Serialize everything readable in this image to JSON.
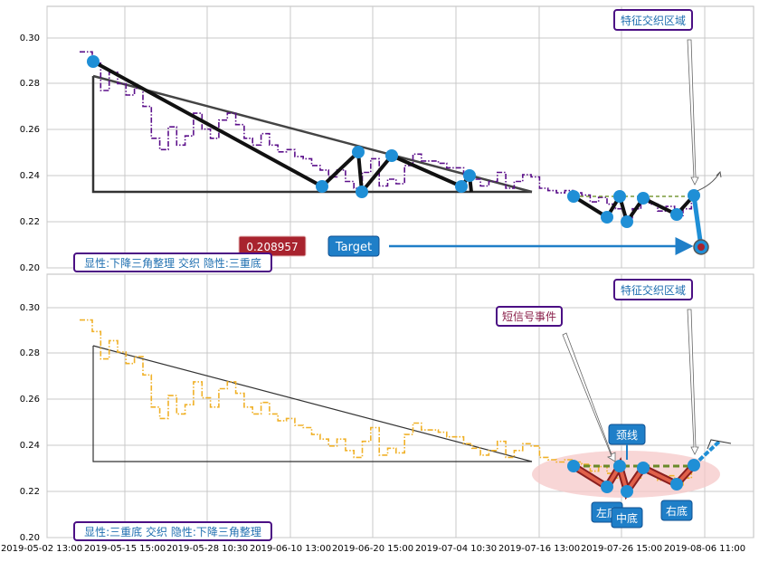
{
  "chart_data": [
    {
      "type": "line",
      "panel": "top",
      "ylim": [
        0.2,
        0.315
      ],
      "yticks": [
        "0.20",
        "0.22",
        "0.24",
        "0.26",
        "0.28",
        "0.30"
      ],
      "grid": true,
      "series": [
        {
          "color": "#5b0f8a",
          "style": "dash-dot",
          "x": [
            0,
            1,
            2,
            3,
            4,
            5,
            6,
            7,
            8,
            9,
            10,
            11,
            12,
            13,
            14,
            15,
            16,
            17,
            18,
            19,
            20,
            21,
            22,
            23,
            24,
            25,
            26,
            27,
            28,
            29,
            30,
            31,
            32,
            33,
            34,
            35,
            36,
            37,
            38,
            39,
            40,
            41,
            42,
            43,
            44,
            45,
            46,
            47,
            48,
            49,
            50,
            51,
            52,
            53,
            54,
            55,
            56,
            57,
            58,
            59,
            60,
            61,
            62,
            63,
            64,
            65,
            66,
            67,
            68,
            69,
            70,
            71,
            72,
            73
          ],
          "y": [
            0.295,
            0.295,
            0.29,
            0.278,
            0.286,
            0.281,
            0.276,
            0.279,
            0.271,
            0.257,
            0.252,
            0.262,
            0.254,
            0.258,
            0.268,
            0.261,
            0.257,
            0.265,
            0.268,
            0.263,
            0.257,
            0.254,
            0.259,
            0.254,
            0.251,
            0.252,
            0.249,
            0.248,
            0.245,
            0.243,
            0.24,
            0.243,
            0.238,
            0.235,
            0.242,
            0.248,
            0.236,
            0.239,
            0.237,
            0.245,
            0.25,
            0.247,
            0.247,
            0.246,
            0.244,
            0.244,
            0.241,
            0.239,
            0.236,
            0.238,
            0.242,
            0.235,
            0.238,
            0.241,
            0.24,
            0.235,
            0.234,
            0.233,
            0.234,
            0.233,
            0.232,
            0.229,
            0.231,
            0.228,
            0.226,
            0.222,
            0.226,
            0.231,
            0.228,
            0.225,
            0.227,
            0.223,
            0.226,
            0.231
          ]
        }
      ],
      "annotations": {
        "region_label": "特征交织区域",
        "value_label": "0.208957",
        "target_label": "Target",
        "pattern_label": "显性:下降三角整理 交织 隐性:三重底"
      }
    },
    {
      "type": "line",
      "panel": "bottom",
      "ylim": [
        0.2,
        0.315
      ],
      "yticks": [
        "0.20",
        "0.22",
        "0.24",
        "0.26",
        "0.28",
        "0.30"
      ],
      "grid": true,
      "x_ticks": [
        "2019-05-02 13:00",
        "2019-05-15 15:00",
        "2019-05-28 10:30",
        "2019-06-10 13:00",
        "2019-06-20 15:00",
        "2019-07-04 10:30",
        "2019-07-16 13:00",
        "2019-07-26 15:00",
        "2019-08-06 11:00"
      ],
      "series": [
        {
          "color": "#f0b128",
          "style": "dash-dot",
          "x": [
            0,
            1,
            2,
            3,
            4,
            5,
            6,
            7,
            8,
            9,
            10,
            11,
            12,
            13,
            14,
            15,
            16,
            17,
            18,
            19,
            20,
            21,
            22,
            23,
            24,
            25,
            26,
            27,
            28,
            29,
            30,
            31,
            32,
            33,
            34,
            35,
            36,
            37,
            38,
            39,
            40,
            41,
            42,
            43,
            44,
            45,
            46,
            47,
            48,
            49,
            50,
            51,
            52,
            53,
            54,
            55,
            56,
            57,
            58,
            59,
            60,
            61,
            62,
            63,
            64,
            65,
            66,
            67,
            68,
            69,
            70,
            71,
            72,
            73
          ],
          "y": [
            0.295,
            0.295,
            0.29,
            0.278,
            0.286,
            0.281,
            0.276,
            0.279,
            0.271,
            0.257,
            0.252,
            0.262,
            0.254,
            0.258,
            0.268,
            0.261,
            0.257,
            0.265,
            0.268,
            0.263,
            0.257,
            0.254,
            0.259,
            0.254,
            0.251,
            0.252,
            0.249,
            0.248,
            0.245,
            0.243,
            0.24,
            0.243,
            0.238,
            0.235,
            0.242,
            0.248,
            0.236,
            0.239,
            0.237,
            0.245,
            0.25,
            0.247,
            0.247,
            0.246,
            0.244,
            0.244,
            0.241,
            0.239,
            0.236,
            0.238,
            0.242,
            0.235,
            0.238,
            0.241,
            0.24,
            0.235,
            0.234,
            0.233,
            0.234,
            0.233,
            0.232,
            0.229,
            0.231,
            0.228,
            0.226,
            0.222,
            0.226,
            0.231,
            0.228,
            0.225,
            0.227,
            0.223,
            0.226,
            0.231
          ]
        }
      ],
      "annotations": {
        "region_label": "特征交织区域",
        "event_label": "短信号事件",
        "neckline_label": "颈线",
        "left_bottom_label": "左底",
        "middle_bottom_label": "中底",
        "right_bottom_label": "右底",
        "pattern_label": "显性:三重底 交织 隐性:下降三角整理"
      }
    }
  ],
  "colors": {
    "grid": "#c8c8c8",
    "marker": "#1f8fd6",
    "label_border": "#4b0f84",
    "value_box": "#a8232e",
    "target_box": "#1f7fc8",
    "highlight": "#f5c8c8"
  }
}
